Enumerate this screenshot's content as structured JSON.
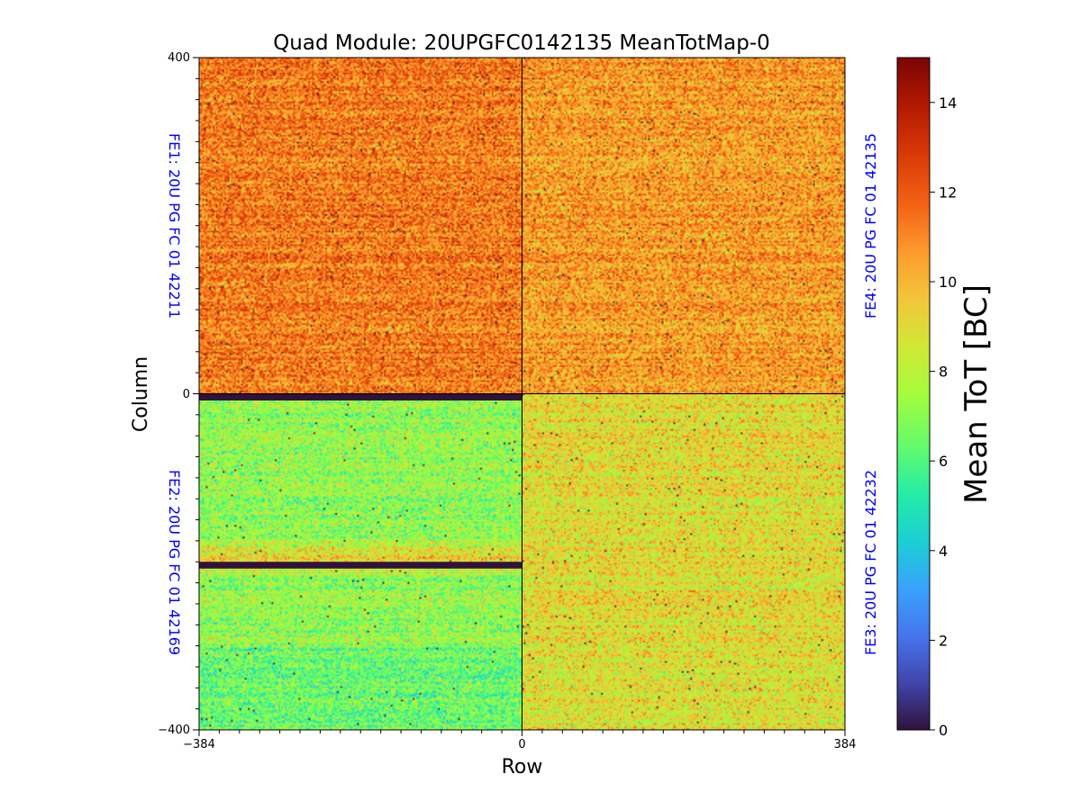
{
  "chart_data": {
    "type": "heatmap",
    "title": "Quad Module: 20UPGFC0142135 MeanTotMap-0",
    "xlabel": "Row",
    "ylabel": "Column",
    "xlim": [
      -384,
      384
    ],
    "ylim": [
      -400,
      400
    ],
    "x_ticks": [
      "−384",
      "0",
      "384"
    ],
    "y_ticks": [
      "400",
      "0",
      "−400"
    ],
    "colorbar": {
      "label": "Mean ToT [BC]",
      "range": [
        0,
        15
      ],
      "ticks": [
        "0",
        "2",
        "4",
        "6",
        "8",
        "10",
        "12",
        "14"
      ],
      "colormap": "turbo"
    },
    "frontends": [
      {
        "label": "FE1: 20U PG FC 01 42211",
        "quadrant": "top-left",
        "mean_tot": 11.3,
        "side": "left"
      },
      {
        "label": "FE2: 20U PG FC 01 42169",
        "quadrant": "bottom-left",
        "mean_tot": 7.2,
        "side": "left"
      },
      {
        "label": "FE3: 20U PG FC 01 42232",
        "quadrant": "bottom-right",
        "mean_tot": 9.0,
        "side": "right"
      },
      {
        "label": "FE4: 20U PG FC 01 42135",
        "quadrant": "top-right",
        "mean_tot": 10.6,
        "side": "right"
      }
    ],
    "dead_rows": [
      {
        "y_from": -8,
        "y_to": 0,
        "x_from": -384,
        "x_to": 0
      },
      {
        "y_from": -208,
        "y_to": -200,
        "x_from": -384,
        "x_to": 0
      }
    ],
    "label_color": "#0000ff"
  }
}
